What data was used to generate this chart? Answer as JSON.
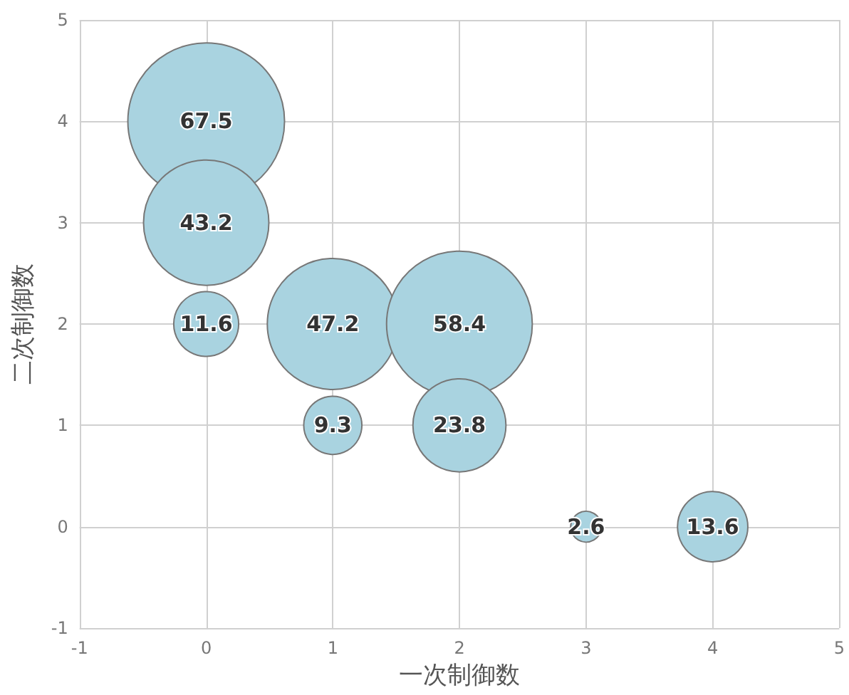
{
  "chart_data": {
    "type": "bubble",
    "xlabel": "一次制御数",
    "ylabel": "二次制御数",
    "x": [
      0,
      0,
      0,
      1,
      2,
      1,
      2,
      3,
      4
    ],
    "series": [
      {
        "color": "#a9d3e0",
        "values": [
          4,
          3,
          2,
          2,
          2,
          1,
          1,
          0,
          0
        ],
        "sizes": [
          67.5,
          43.2,
          11.6,
          47.2,
          58.4,
          9.3,
          23.8,
          2.6,
          13.6
        ],
        "value_labels": [
          "67.5",
          "43.2",
          "11.6",
          "47.2",
          "58.4",
          "9.3",
          "23.8",
          "2.6",
          "13.6"
        ]
      }
    ],
    "xlim": [
      -1,
      5
    ],
    "xticks": [
      -1,
      0,
      1,
      2,
      3,
      4,
      5
    ],
    "ylim": [
      -1,
      5
    ],
    "yticks": [
      -1,
      0,
      1,
      2,
      3,
      4,
      5
    ],
    "grid": true
  }
}
